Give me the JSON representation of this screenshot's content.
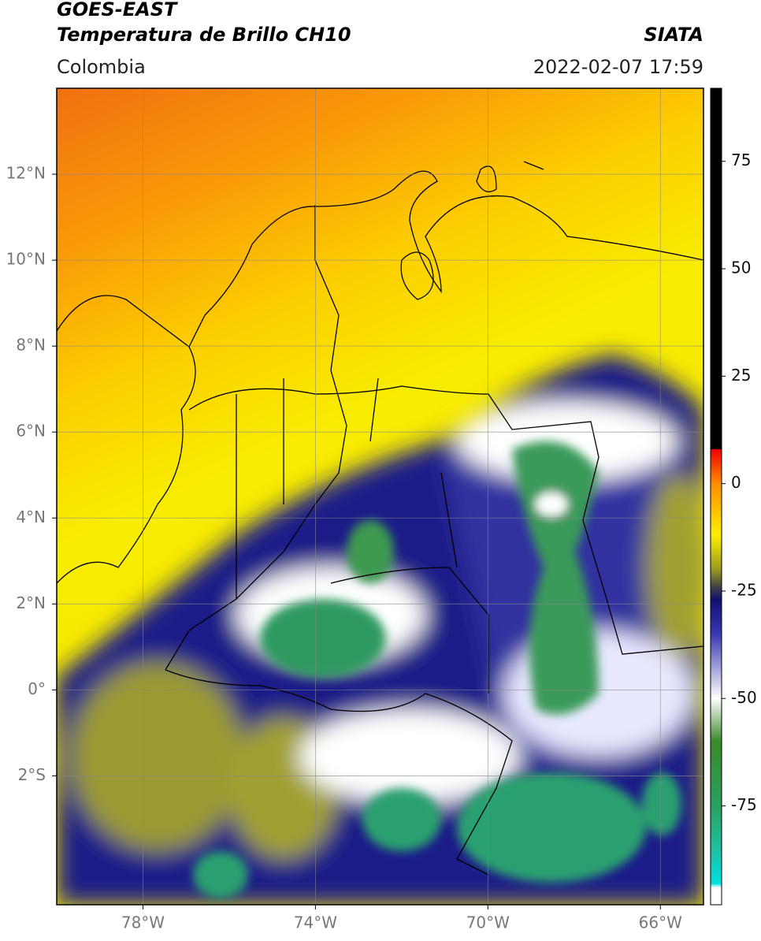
{
  "header": {
    "title": "GOES-EAST",
    "subtitle": "Temperatura de Brillo CH10",
    "region": "Colombia",
    "source": "SIATA",
    "datetime": "2022-02-07 17:59"
  },
  "map": {
    "xlim": [
      -80,
      -65
    ],
    "ylim": [
      -5,
      14
    ],
    "grid": true,
    "xticks": [
      {
        "value": -78,
        "label": "78°W"
      },
      {
        "value": -74,
        "label": "74°W"
      },
      {
        "value": -70,
        "label": "70°W"
      },
      {
        "value": -66,
        "label": "66°W"
      }
    ],
    "yticks": [
      {
        "value": 12,
        "label": "12°N"
      },
      {
        "value": 10,
        "label": "10°N"
      },
      {
        "value": 8,
        "label": "8°N"
      },
      {
        "value": 6,
        "label": "6°N"
      },
      {
        "value": 4,
        "label": "4°N"
      },
      {
        "value": 2,
        "label": "2°N"
      },
      {
        "value": 0,
        "label": "0°"
      },
      {
        "value": -2,
        "label": "2°S"
      }
    ]
  },
  "colorbar": {
    "lim": [
      -98,
      92
    ],
    "ticks": [
      75,
      50,
      25,
      0,
      -25,
      -50,
      -75
    ]
  }
}
